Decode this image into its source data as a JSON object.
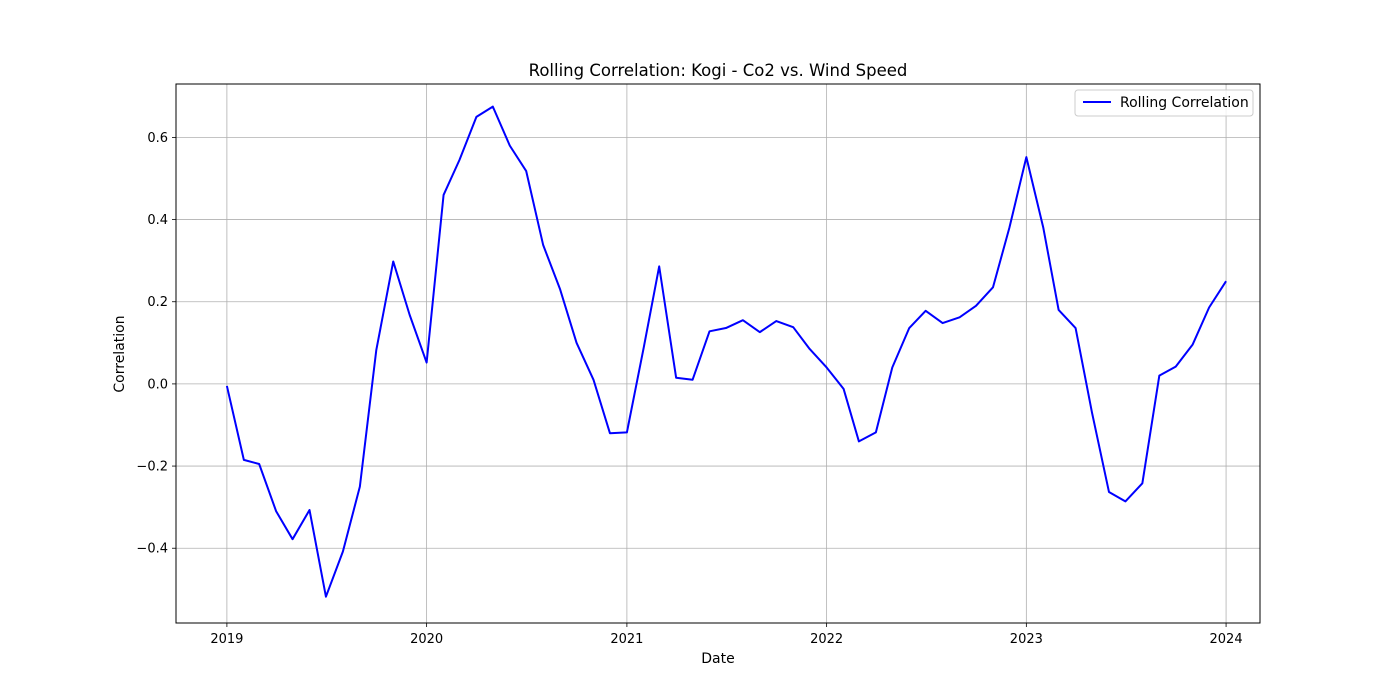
{
  "chart_data": {
    "type": "line",
    "title": "Rolling Correlation: Kogi - Co2 vs. Wind Speed",
    "xlabel": "Date",
    "ylabel": "Correlation",
    "xlim": [
      "2018-09-30",
      "2024-03-03"
    ],
    "ylim": [
      -0.582,
      0.73
    ],
    "x_ticks": [
      "2019",
      "2020",
      "2021",
      "2022",
      "2023",
      "2024"
    ],
    "y_ticks": [
      -0.4,
      -0.2,
      0.0,
      0.2,
      0.4,
      0.6
    ],
    "grid": true,
    "legend_position": "upper right",
    "series": [
      {
        "name": "Rolling Correlation",
        "color": "#0000ff",
        "x": [
          "2019-01-01",
          "2019-02-01",
          "2019-03-01",
          "2019-04-01",
          "2019-05-01",
          "2019-06-01",
          "2019-07-01",
          "2019-08-01",
          "2019-09-01",
          "2019-10-01",
          "2019-11-01",
          "2019-12-01",
          "2020-01-01",
          "2020-02-01",
          "2020-03-01",
          "2020-04-01",
          "2020-05-01",
          "2020-06-01",
          "2020-07-01",
          "2020-08-01",
          "2020-09-01",
          "2020-10-01",
          "2020-11-01",
          "2020-12-01",
          "2021-01-01",
          "2021-02-01",
          "2021-03-01",
          "2021-04-01",
          "2021-05-01",
          "2021-06-01",
          "2021-07-01",
          "2021-08-01",
          "2021-09-01",
          "2021-10-01",
          "2021-11-01",
          "2021-12-01",
          "2022-01-01",
          "2022-02-01",
          "2022-03-01",
          "2022-04-01",
          "2022-05-01",
          "2022-06-01",
          "2022-07-01",
          "2022-08-01",
          "2022-09-01",
          "2022-10-01",
          "2022-11-01",
          "2022-12-01",
          "2023-01-01",
          "2023-02-01",
          "2023-03-01",
          "2023-04-01",
          "2023-05-01",
          "2023-06-01",
          "2023-07-01",
          "2023-08-01",
          "2023-09-01",
          "2023-10-01",
          "2023-11-01",
          "2023-12-01",
          "2024-01-01"
        ],
        "y": [
          -0.005,
          -0.185,
          -0.195,
          -0.31,
          -0.378,
          -0.307,
          -0.518,
          -0.408,
          -0.25,
          0.082,
          0.298,
          0.168,
          0.052,
          0.46,
          0.545,
          0.65,
          0.675,
          0.58,
          0.518,
          0.338,
          0.23,
          0.1,
          0.01,
          -0.12,
          -0.118,
          0.09,
          0.286,
          0.015,
          0.01,
          0.128,
          0.136,
          0.155,
          0.126,
          0.153,
          0.138,
          0.085,
          0.04,
          -0.012,
          -0.14,
          -0.118,
          0.04,
          0.136,
          0.178,
          0.148,
          0.162,
          0.19,
          0.235,
          0.38,
          0.552,
          0.38,
          0.18,
          0.136,
          -0.07,
          -0.263,
          -0.286,
          -0.242,
          0.02,
          0.042,
          0.096,
          0.186,
          0.25
        ]
      }
    ]
  }
}
